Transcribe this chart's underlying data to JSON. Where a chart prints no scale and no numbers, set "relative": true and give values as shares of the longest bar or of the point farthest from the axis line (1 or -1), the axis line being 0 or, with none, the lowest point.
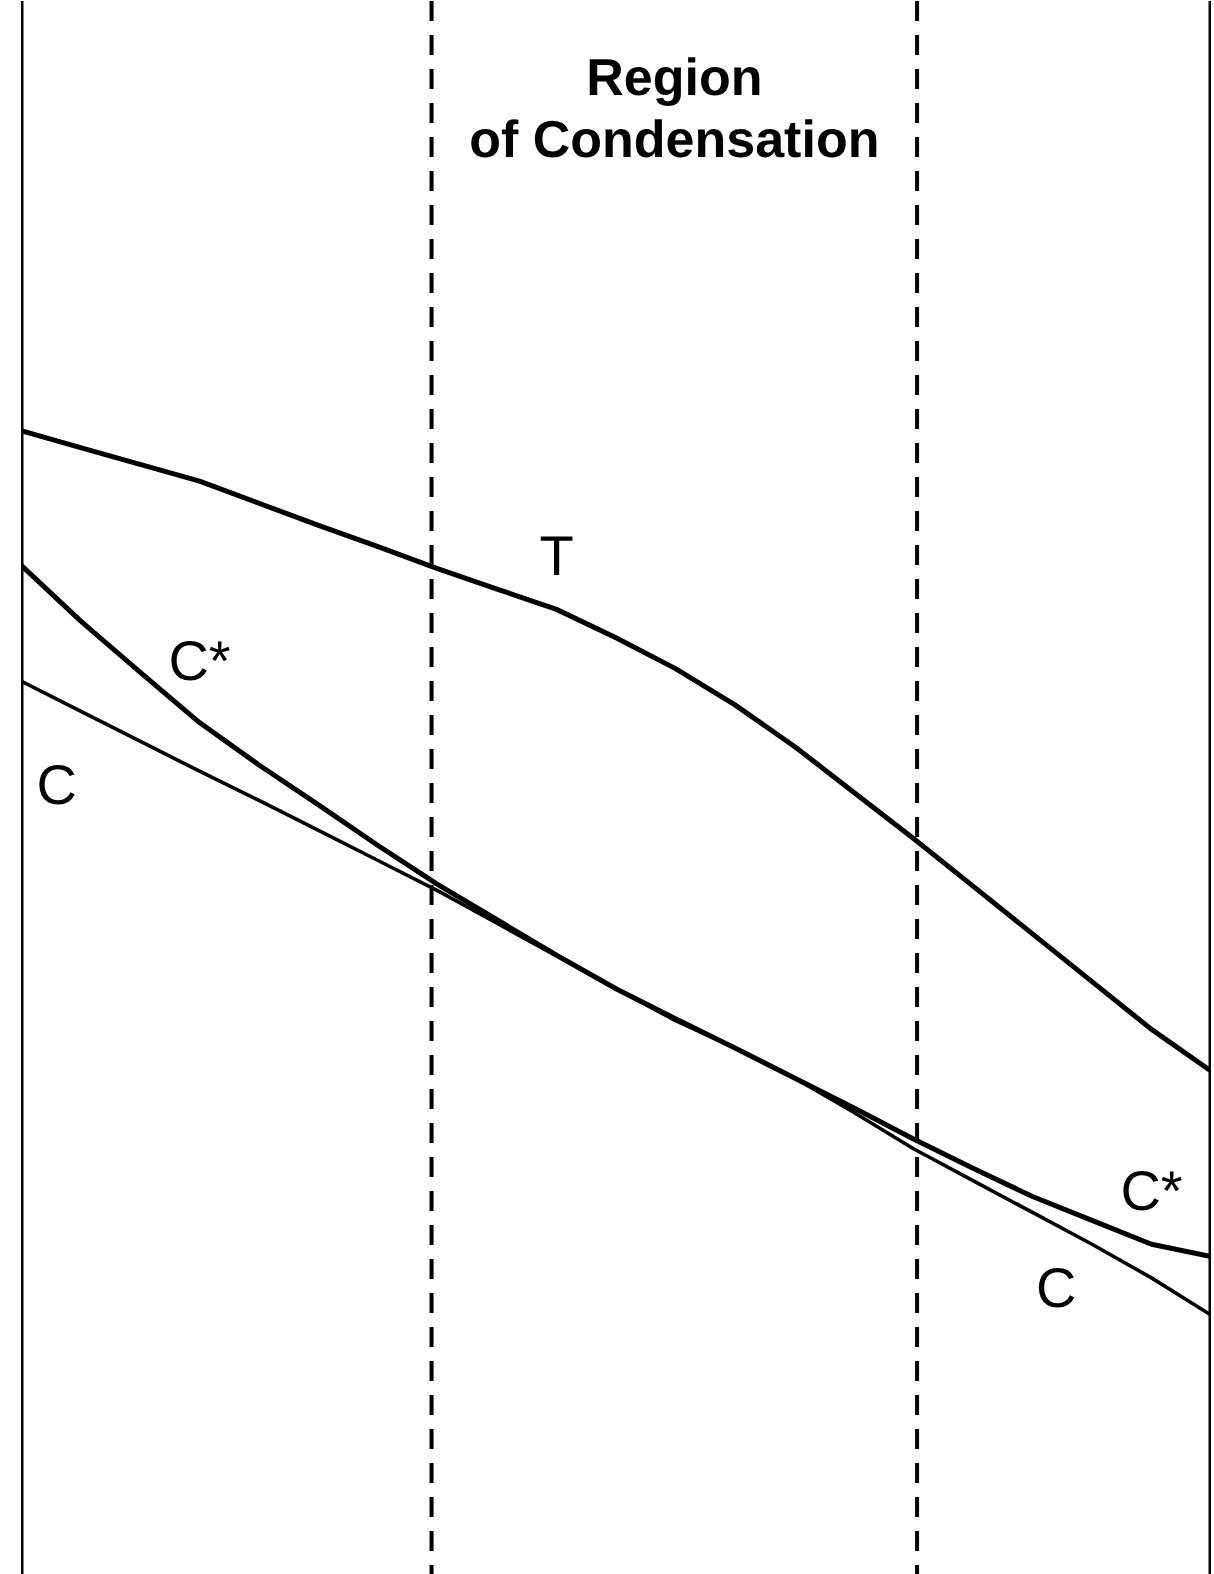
{
  "chart_data": {
    "type": "line",
    "relative": true,
    "tick_labels": false,
    "grid": false,
    "line_style": "solid",
    "marker": "none",
    "categories": [
      null,
      null,
      null,
      null,
      null,
      null,
      null,
      null,
      null,
      null,
      null,
      null,
      null,
      null,
      null,
      null,
      null,
      null,
      null,
      null,
      null
    ],
    "annotations": [
      "Region of Condensation"
    ],
    "series": [
      {
        "name": "T",
        "color": "#000000",
        "values": [
          1.0,
          0.981,
          0.962,
          0.943,
          0.918,
          0.893,
          0.869,
          0.844,
          0.821,
          0.798,
          0.766,
          0.731,
          0.69,
          0.643,
          0.591,
          0.539,
          0.485,
          0.431,
          0.377,
          0.323,
          0.276
        ]
      },
      {
        "name": "C*",
        "color": "#000000",
        "values": [
          0.848,
          0.785,
          0.727,
          0.67,
          0.622,
          0.577,
          0.531,
          0.487,
          0.447,
          0.407,
          0.369,
          0.335,
          0.302,
          0.268,
          0.234,
          0.199,
          0.166,
          0.134,
          0.107,
          0.08,
          0.066
        ]
      },
      {
        "name": "C",
        "color": "#000000",
        "values": [
          0.717,
          0.683,
          0.649,
          0.615,
          0.582,
          0.548,
          0.514,
          0.48,
          0.443,
          0.406,
          0.369,
          0.333,
          0.302,
          0.268,
          0.229,
          0.188,
          0.152,
          0.116,
          0.08,
          0.042,
          0.0
        ]
      }
    ]
  }
}
